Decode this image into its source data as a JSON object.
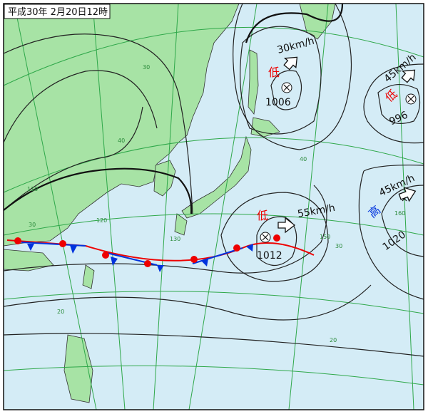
{
  "title": "平成30年 2月20日12時",
  "systems": [
    {
      "kind": "低",
      "pressure": "1006",
      "speed": "30km/h"
    },
    {
      "kind": "低",
      "pressure": "996",
      "speed": "45km/h"
    },
    {
      "kind": "低",
      "pressure": "1012",
      "speed": "55km/h"
    },
    {
      "kind": "高",
      "pressure": "1020",
      "speed": "45km/h"
    }
  ],
  "grid_labels": [
    "30",
    "40",
    "110",
    "120",
    "130",
    "150",
    "160",
    "40",
    "30",
    "20",
    "20",
    "30"
  ]
}
